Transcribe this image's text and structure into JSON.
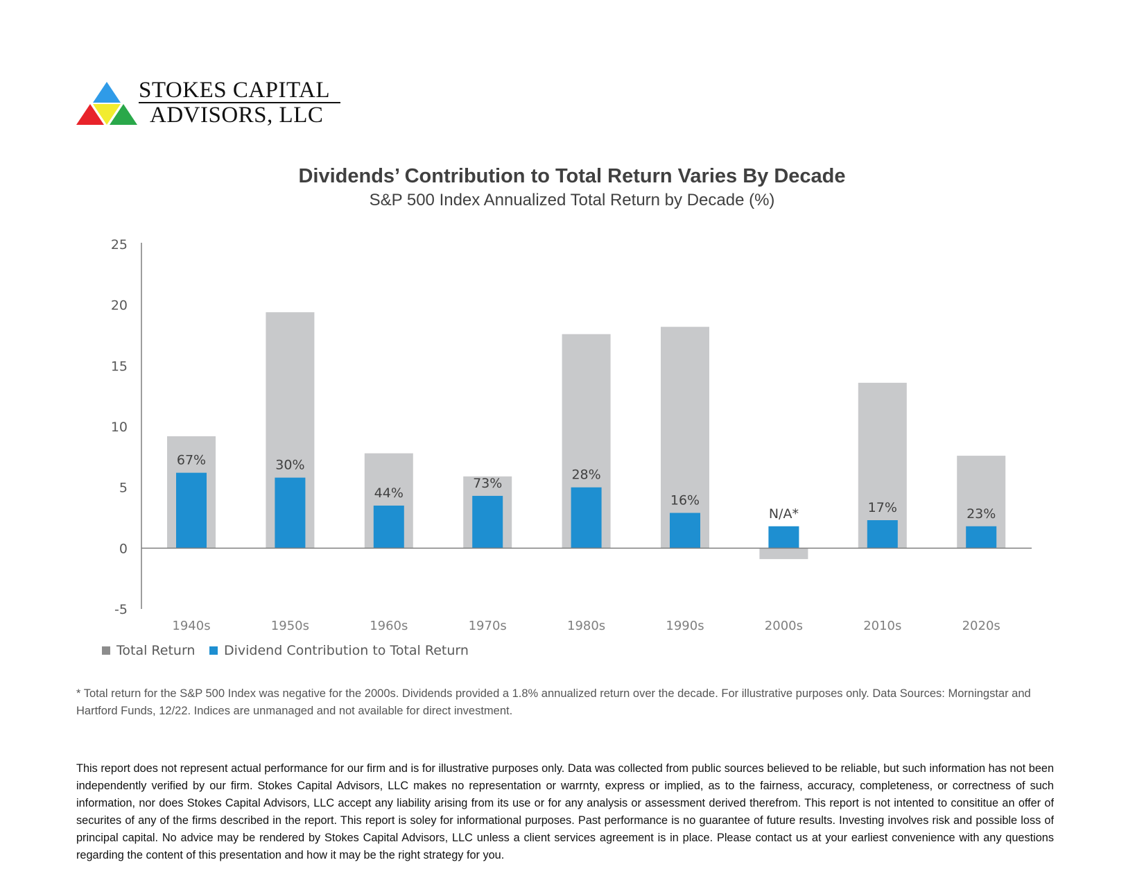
{
  "logo": {
    "line1": "STOKES CAPITAL",
    "line2": "ADVISORS, LLC",
    "colors": [
      "#2f9be8",
      "#e8232a",
      "#f2ec2f",
      "#2aa84a"
    ]
  },
  "chart_data": {
    "type": "bar",
    "title": "Dividends’ Contribution to Total Return Varies By Decade",
    "subtitle": "S&P 500 Index Annualized Total Return by Decade (%)",
    "categories": [
      "1940s",
      "1950s",
      "1960s",
      "1970s",
      "1980s",
      "1990s",
      "2000s",
      "2010s",
      "2020s"
    ],
    "series": [
      {
        "name": "Total Return",
        "color": "#c8c9cb",
        "values": [
          9.2,
          19.4,
          7.8,
          5.9,
          17.6,
          18.2,
          -0.9,
          13.6,
          7.6
        ]
      },
      {
        "name": "Dividend Contribution to Total Return",
        "color": "#1e8fd1",
        "values": [
          6.2,
          5.8,
          3.5,
          4.3,
          5.0,
          2.9,
          1.8,
          2.3,
          1.8
        ]
      }
    ],
    "data_labels": [
      "67%",
      "30%",
      "44%",
      "73%",
      "28%",
      "16%",
      "N/A*",
      "17%",
      "23%"
    ],
    "ylim": [
      -5,
      25
    ],
    "yticks": [
      "25",
      "20",
      "15",
      "10",
      "5",
      "0",
      "-5"
    ],
    "ytick_values": [
      25,
      20,
      15,
      10,
      5,
      0,
      -5
    ],
    "grid": false,
    "legend_position": "bottom-left"
  },
  "footnote": "* Total return for the S&P 500 Index was negative for the 2000s. Dividends provided a 1.8% annualized return over the decade. For illustrative purposes only. Data Sources: Morningstar and Hartford Funds, 12/22.  Indices are unmanaged and not available for direct investment.",
  "disclaimer": "This report does not represent actual performance for our firm and is for illustrative purposes only.  Data was collected from public sources believed to be reliable, but such information has not been independently verified by our firm.  Stokes Capital Advisors, LLC makes no representation or warrnty, express or implied, as to the fairness, accuracy, completeness, or correctness of such information, nor does Stokes Capital Advisors, LLC accept any liability arising from its use or for any analysis or assessment derived therefrom.  This report is not intented to consititue an offer of securites of any of the firms described in the report. This report is soley for informational purposes.  Past performance is no guarantee of future results.  Investing involves risk and possible loss of principal capital.  No advice may be rendered by Stokes Capital Advisors, LLC unless a client services agreement is in place.  Please contact us at your earliest convenience with any questions regarding the content of this presentation and how it may be the right strategy for you."
}
